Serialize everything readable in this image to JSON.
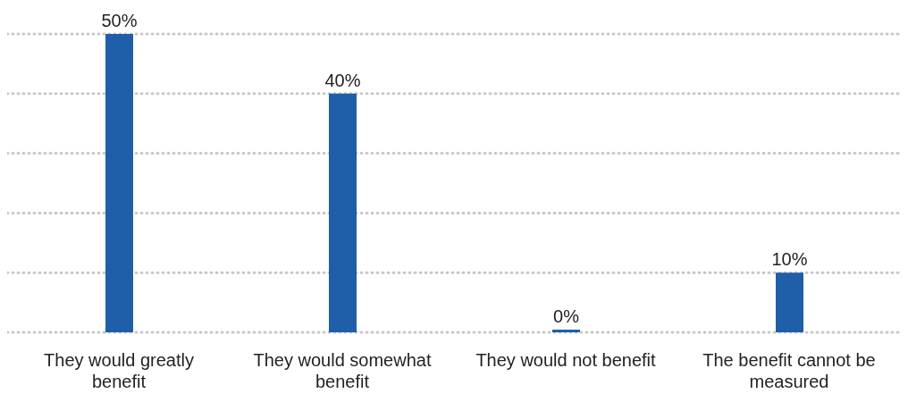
{
  "chart_data": {
    "type": "bar",
    "categories": [
      "They would greatly benefit",
      "They would somewhat benefit",
      "They would not benefit",
      "The benefit cannot be measured"
    ],
    "values": [
      50,
      40,
      0,
      10
    ],
    "value_labels": [
      "50%",
      "40%",
      "0%",
      "10%"
    ],
    "color": "#1f5ea8",
    "ylim": [
      0,
      50
    ],
    "yticks": [
      0,
      10,
      20,
      30,
      40,
      50
    ],
    "grid": "y",
    "tick_labels": "x"
  }
}
